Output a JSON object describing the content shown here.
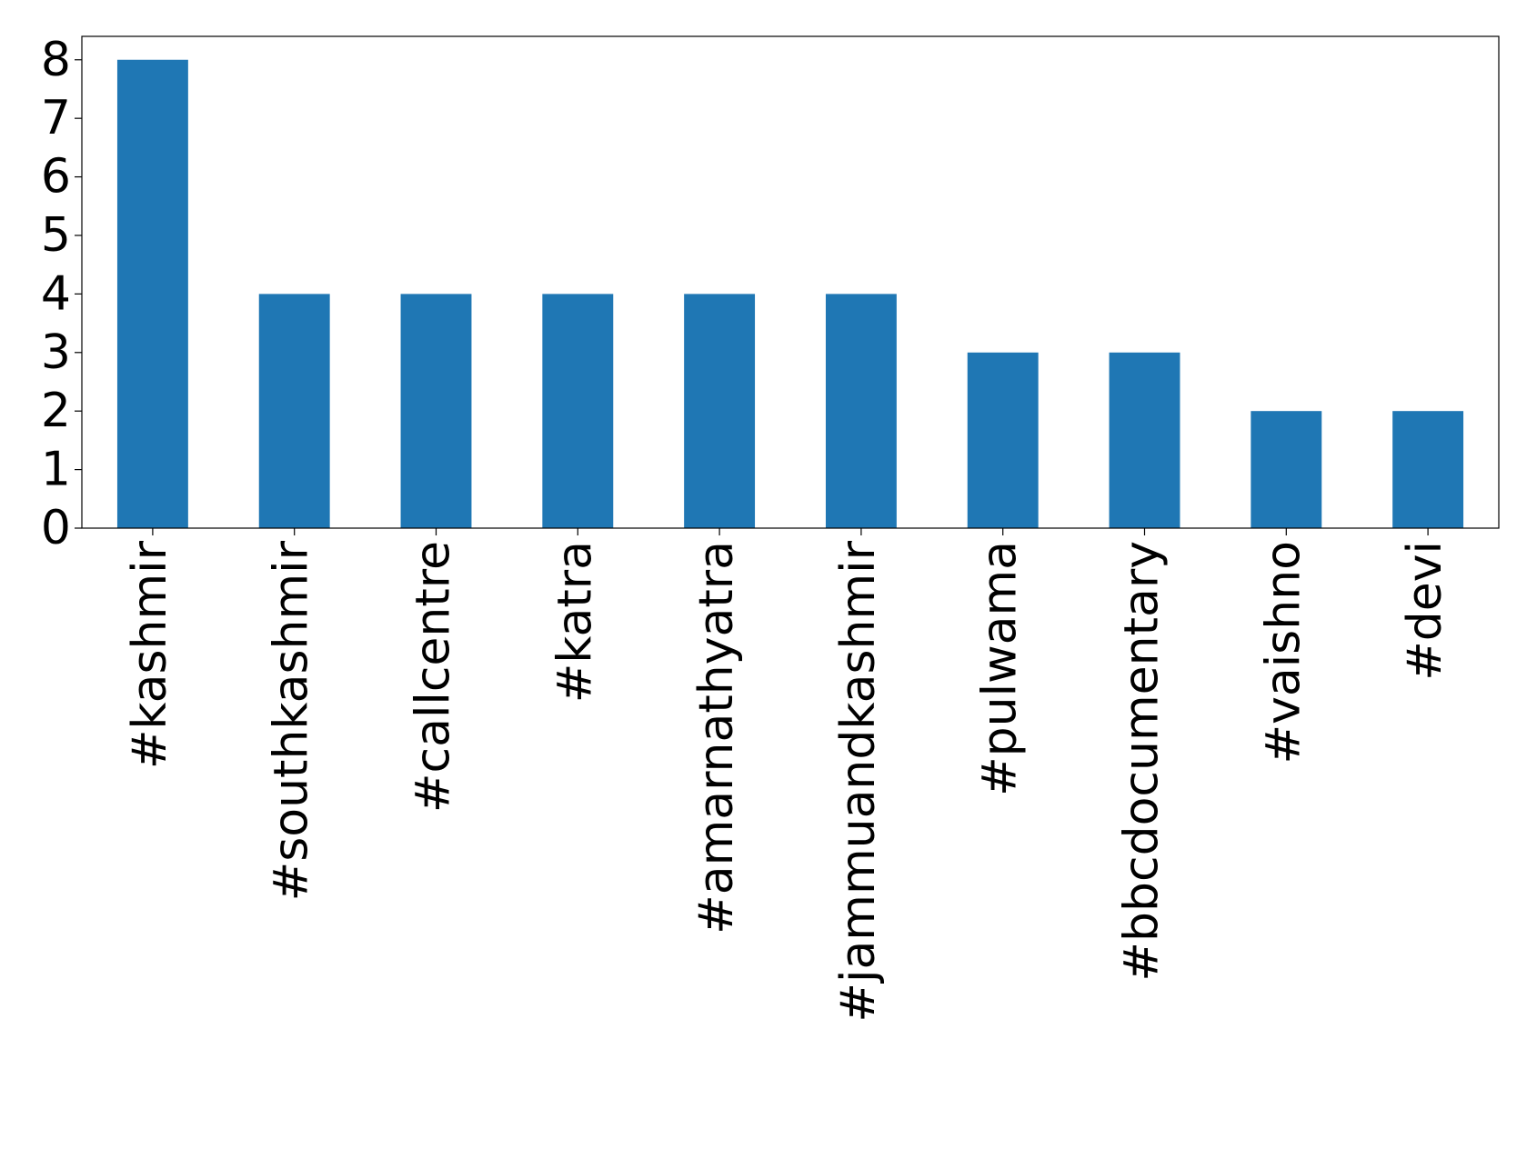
{
  "chart_data": {
    "type": "bar",
    "categories": [
      "#kashmir",
      "#southkashmir",
      "#callcentre",
      "#katra",
      "#amarnathyatra",
      "#jammuandkashmir",
      "#pulwama",
      "#bbcdocumentary",
      "#vaishno",
      "#devi"
    ],
    "values": [
      8,
      4,
      4,
      4,
      4,
      4,
      3,
      3,
      2,
      2
    ],
    "color": "#1f77b4",
    "ylim": [
      0,
      8.4
    ],
    "yticks": [
      0,
      1,
      2,
      3,
      4,
      5,
      6,
      7,
      8
    ],
    "grid": false
  }
}
